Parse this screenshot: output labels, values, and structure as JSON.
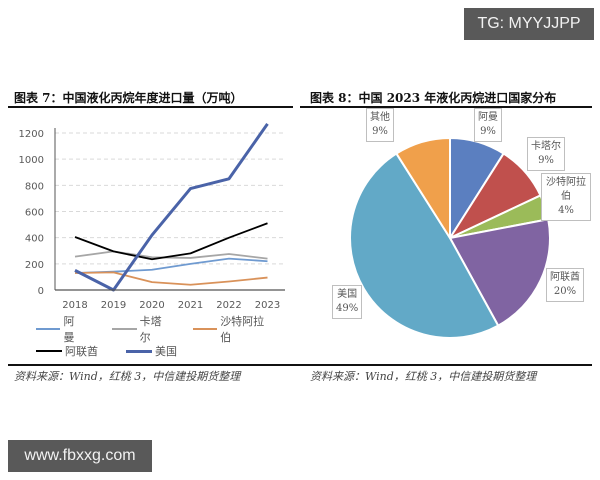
{
  "watermarks": {
    "top": "TG: MYYJJPP",
    "bottom": "www.fbxxg.com"
  },
  "left_panel": {
    "title": "图表 7：中国液化丙烷年度进口量（万吨）",
    "source": "资料来源：Wind，红桃 3，中信建投期货整理"
  },
  "right_panel": {
    "title": "图表 8：中国 2023 年液化丙烷进口国家分布",
    "source": "资料来源：Wind，红桃 3，中信建投期货整理"
  },
  "legend": [
    {
      "name": "阿曼",
      "color": "#6f9ad0"
    },
    {
      "name": "卡塔尔",
      "color": "#a6a6a6"
    },
    {
      "name": "沙特阿拉伯",
      "color": "#d9925a"
    },
    {
      "name": "阿联酋",
      "color": "#000000"
    },
    {
      "name": "美国",
      "color": "#4a63a8"
    }
  ],
  "pie_labels": [
    {
      "name": "其他",
      "pct": "9%"
    },
    {
      "name": "阿曼",
      "pct": "9%"
    },
    {
      "name": "卡塔尔",
      "pct": "9%"
    },
    {
      "name": "沙特阿拉伯",
      "pct": "4%"
    },
    {
      "name": "阿联酋",
      "pct": "20%"
    },
    {
      "name": "美国",
      "pct": "49%"
    }
  ],
  "chart_data": [
    {
      "type": "line",
      "title": "图表 7：中国液化丙烷年度进口量（万吨）",
      "xlabel": "",
      "ylabel": "万吨",
      "x": [
        "2018",
        "2019",
        "2020",
        "2021",
        "2022",
        "2023"
      ],
      "ylim": [
        0,
        1300
      ],
      "yticks": [
        0,
        200,
        400,
        600,
        800,
        1000,
        1200
      ],
      "grid": "horizontal dashed",
      "legend_position": "bottom",
      "series": [
        {
          "name": "阿曼",
          "color": "#6f9ad0",
          "values": [
            null,
            140,
            155,
            200,
            240,
            220
          ]
        },
        {
          "name": "卡塔尔",
          "color": "#a6a6a6",
          "values": [
            255,
            295,
            250,
            245,
            275,
            240
          ]
        },
        {
          "name": "沙特阿拉伯",
          "color": "#d9925a",
          "values": [
            130,
            135,
            60,
            40,
            65,
            95
          ]
        },
        {
          "name": "阿联酋",
          "color": "#000000",
          "values": [
            405,
            295,
            235,
            280,
            400,
            510
          ]
        },
        {
          "name": "美国",
          "color": "#4a63a8",
          "values": [
            150,
            0,
            420,
            775,
            850,
            1270
          ]
        }
      ]
    },
    {
      "type": "pie",
      "title": "图表 8：中国 2023 年液化丙烷进口国家分布",
      "categories": [
        "阿曼",
        "卡塔尔",
        "沙特阿拉伯",
        "阿联酋",
        "美国",
        "其他"
      ],
      "values": [
        9,
        9,
        4,
        20,
        49,
        9
      ],
      "colors": [
        "#5b7fc0",
        "#c0504d",
        "#9bbb59",
        "#8064a2",
        "#62a9c7",
        "#f0a04b"
      ],
      "unit": "%"
    }
  ]
}
